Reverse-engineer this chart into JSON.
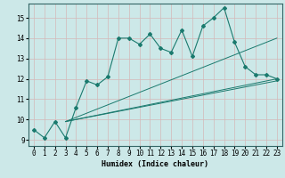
{
  "xlabel": "Humidex (Indice chaleur)",
  "xlim": [
    -0.5,
    23.5
  ],
  "ylim": [
    8.7,
    15.7
  ],
  "yticks": [
    9,
    10,
    11,
    12,
    13,
    14,
    15
  ],
  "xticks": [
    0,
    1,
    2,
    3,
    4,
    5,
    6,
    7,
    8,
    9,
    10,
    11,
    12,
    13,
    14,
    15,
    16,
    17,
    18,
    19,
    20,
    21,
    22,
    23
  ],
  "bg_color": "#cce8e8",
  "grid_color": "#b8d8d8",
  "line_color": "#1a7a6e",
  "main_x": [
    0,
    1,
    2,
    3,
    4,
    5,
    6,
    7,
    8,
    9,
    10,
    11,
    12,
    13,
    14,
    15,
    16,
    17,
    18,
    19,
    20,
    21,
    22,
    23
  ],
  "main_y": [
    9.5,
    9.1,
    9.9,
    9.1,
    10.6,
    11.9,
    11.7,
    12.1,
    14.0,
    14.0,
    13.7,
    14.2,
    13.5,
    13.3,
    14.4,
    13.1,
    14.6,
    15.0,
    15.5,
    13.8,
    12.6,
    12.2,
    12.2,
    12.0
  ],
  "trend1_x": [
    3,
    23
  ],
  "trend1_y": [
    9.9,
    14.0
  ],
  "trend2_x": [
    3,
    23
  ],
  "trend2_y": [
    9.9,
    12.0
  ],
  "trend3_x": [
    3,
    23
  ],
  "trend3_y": [
    9.9,
    11.9
  ]
}
